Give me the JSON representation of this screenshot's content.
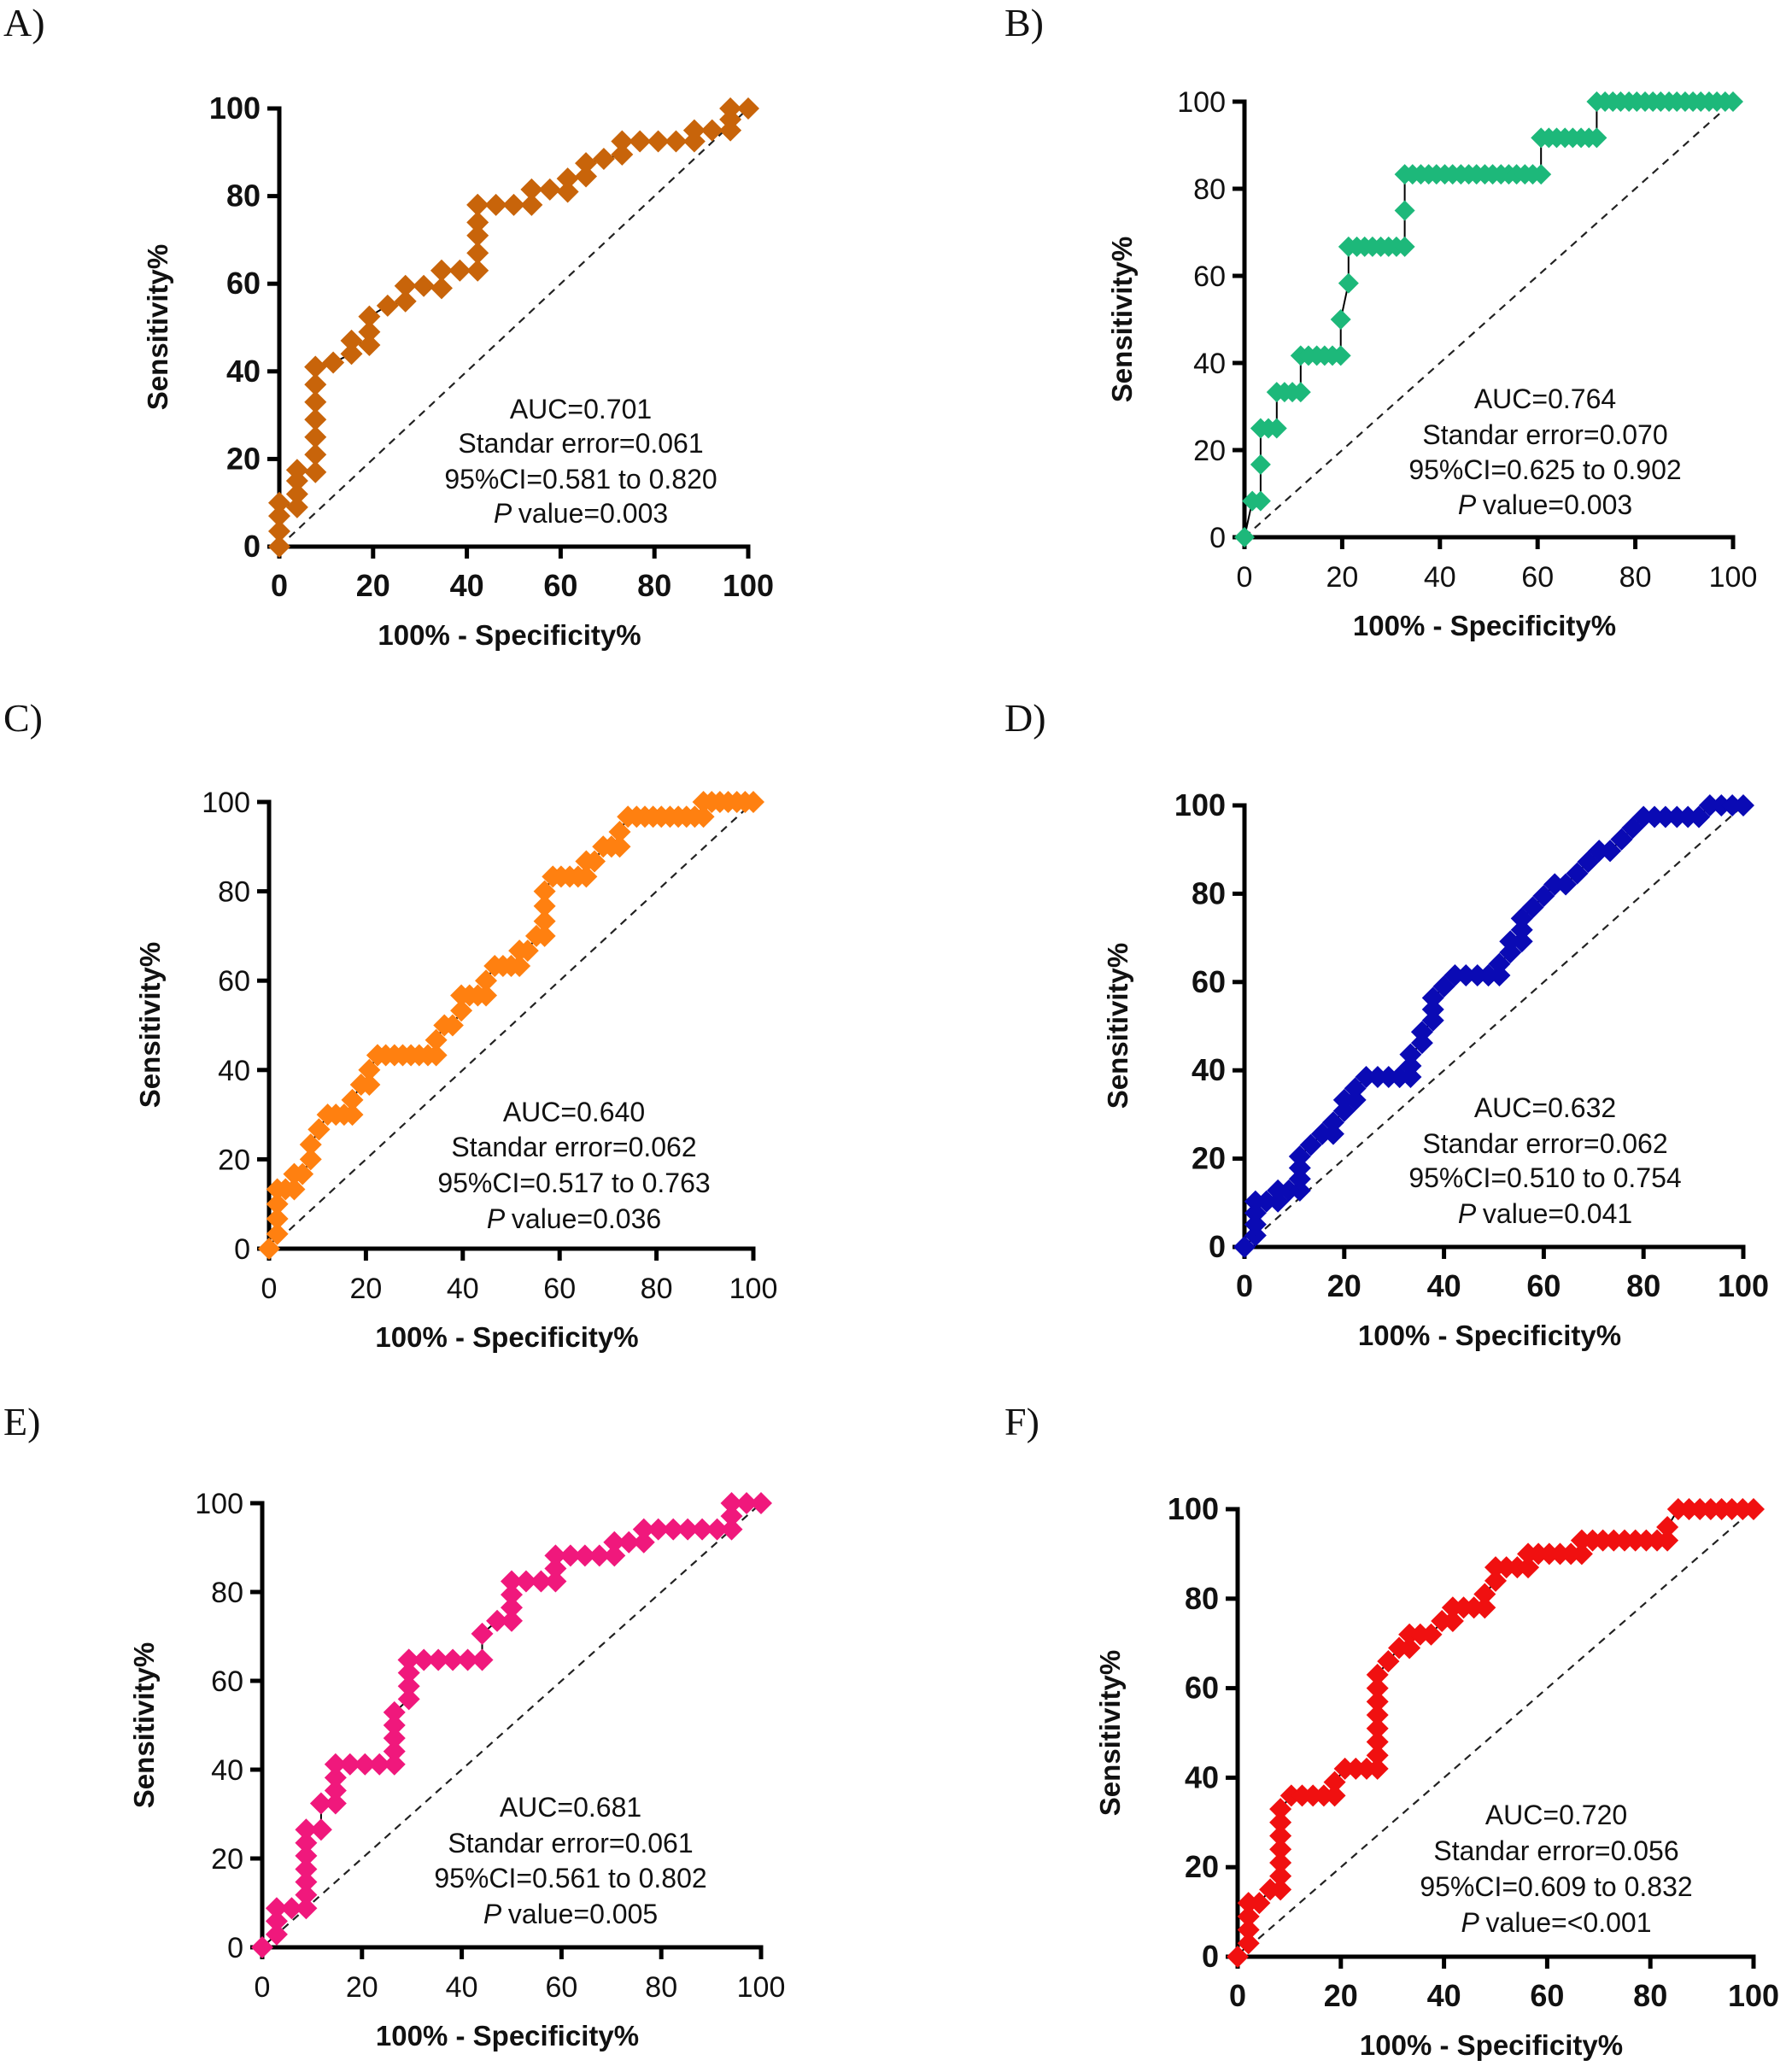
{
  "figure": {
    "panels": [
      "A)",
      "B)",
      "C)",
      "D)",
      "E)",
      "F)"
    ]
  },
  "chart_data": [
    {
      "panel": "A)",
      "type": "line",
      "marker": "diamond",
      "color": "#C8640A",
      "bold_ticks": true,
      "xlabel": "100% - Specificity%",
      "ylabel": "Sensitivity%",
      "xlim": [
        0,
        100
      ],
      "ylim": [
        0,
        100
      ],
      "xticks": [
        "0",
        "20",
        "40",
        "60",
        "80",
        "100"
      ],
      "yticks": [
        "0",
        "20",
        "40",
        "60",
        "80",
        "100"
      ],
      "reference_line": "diagonal dashed",
      "annotations": [
        "AUC=0.701",
        "Standar error=0.061",
        "95%CI=0.581 to 0.820",
        "value=0.003"
      ],
      "annotation_italic_prefix": "P",
      "x": [
        0,
        0,
        0,
        0,
        3.8,
        3.8,
        3.8,
        3.8,
        7.7,
        7.7,
        7.7,
        7.7,
        7.7,
        7.7,
        7.7,
        7.7,
        7.7,
        11.5,
        15.4,
        15.4,
        19.2,
        19.2,
        19.2,
        23.1,
        26.9,
        26.9,
        30.8,
        34.6,
        34.6,
        38.5,
        42.3,
        42.3,
        42.3,
        42.3,
        42.3,
        42.3,
        46.2,
        50,
        53.8,
        53.8,
        57.7,
        61.5,
        61.5,
        65.4,
        65.4,
        69.2,
        73.1,
        73.1,
        76.9,
        80.8,
        84.6,
        88.5,
        88.5,
        92.3,
        96.2,
        96.2,
        96.2,
        100
      ],
      "y": [
        0,
        3.5,
        7,
        10,
        9,
        12,
        15,
        17.5,
        17,
        21,
        25,
        29,
        33,
        37,
        41,
        41,
        41,
        42,
        44,
        47,
        46,
        49,
        52.5,
        55,
        56,
        59.5,
        59.5,
        59,
        63,
        63,
        63,
        67,
        71,
        74,
        78,
        78,
        78,
        78,
        78,
        81.5,
        81.5,
        81,
        84,
        84.5,
        87.5,
        88.5,
        89.5,
        92.5,
        92.5,
        92.5,
        92.5,
        92.5,
        95,
        95,
        95,
        97.5,
        100,
        100
      ]
    },
    {
      "panel": "B)",
      "type": "line",
      "marker": "diamond",
      "color": "#1DB87A",
      "bold_ticks": false,
      "xlabel": "100% - Specificity%",
      "ylabel": "Sensitivity%",
      "xlim": [
        0,
        100
      ],
      "ylim": [
        0,
        100
      ],
      "xticks": [
        "0",
        "20",
        "40",
        "60",
        "80",
        "100"
      ],
      "yticks": [
        "0",
        "20",
        "40",
        "60",
        "80",
        "100"
      ],
      "reference_line": "diagonal dashed",
      "annotations": [
        "AUC=0.764",
        "Standar error=0.070",
        "95%CI=0.625 to 0.902",
        "value=0.003"
      ],
      "annotation_italic_prefix": "P",
      "x": [
        0,
        1.6,
        3.3,
        3.3,
        3.3,
        4.9,
        6.6,
        6.6,
        8.2,
        9.8,
        11.5,
        11.5,
        13.1,
        14.8,
        16.4,
        18,
        19.7,
        19.7,
        21.3,
        21.3,
        23,
        24.6,
        26.2,
        27.9,
        29.5,
        31.1,
        32.8,
        32.8,
        32.8,
        34.4,
        36.1,
        37.7,
        39.3,
        41,
        42.6,
        44.3,
        45.9,
        47.5,
        49.2,
        50.8,
        52.5,
        54.1,
        55.7,
        57.4,
        59,
        60.7,
        60.7,
        62.3,
        63.9,
        65.6,
        67.2,
        68.9,
        70.5,
        72.1,
        72.1,
        73.8,
        75.4,
        77,
        78.7,
        80.3,
        82,
        83.6,
        85.2,
        86.9,
        88.5,
        90.2,
        91.8,
        93.4,
        95.1,
        96.7,
        98.4,
        100
      ],
      "y": [
        0,
        8.3,
        8.3,
        16.7,
        25,
        25,
        25,
        33.3,
        33.3,
        33.3,
        33.3,
        41.7,
        41.7,
        41.7,
        41.7,
        41.7,
        41.7,
        50,
        58.3,
        66.7,
        66.7,
        66.7,
        66.7,
        66.7,
        66.7,
        66.7,
        66.7,
        75,
        83.3,
        83.3,
        83.3,
        83.3,
        83.3,
        83.3,
        83.3,
        83.3,
        83.3,
        83.3,
        83.3,
        83.3,
        83.3,
        83.3,
        83.3,
        83.3,
        83.3,
        83.3,
        91.7,
        91.7,
        91.7,
        91.7,
        91.7,
        91.7,
        91.7,
        91.7,
        100,
        100,
        100,
        100,
        100,
        100,
        100,
        100,
        100,
        100,
        100,
        100,
        100,
        100,
        100,
        100,
        100,
        100
      ]
    },
    {
      "panel": "C)",
      "type": "line",
      "marker": "diamond",
      "color": "#FF8010",
      "bold_ticks": false,
      "xlabel": "100% - Specificity%",
      "ylabel": "Sensitivity%",
      "xlim": [
        0,
        100
      ],
      "ylim": [
        0,
        100
      ],
      "xticks": [
        "0",
        "20",
        "40",
        "60",
        "80",
        "100"
      ],
      "yticks": [
        "0",
        "20",
        "40",
        "60",
        "80",
        "100"
      ],
      "reference_line": "diagonal dashed",
      "annotations": [
        "AUC=0.640",
        "Standar error=0.062",
        "95%CI=0.517 to 0.763",
        "value=0.036"
      ],
      "annotation_italic_prefix": "P",
      "x": [
        0,
        1.7,
        1.7,
        1.7,
        1.7,
        3.4,
        5.2,
        5.2,
        6.9,
        8.6,
        8.6,
        10.3,
        10.3,
        12.1,
        13.8,
        15.5,
        17.2,
        17.2,
        19,
        20.7,
        20.7,
        22.4,
        22.4,
        24.1,
        25.9,
        27.6,
        29.3,
        31,
        32.8,
        34.5,
        34.5,
        36.2,
        37.9,
        39.7,
        39.7,
        41.4,
        43.1,
        44.8,
        44.8,
        46.6,
        48.3,
        50,
        51.7,
        51.7,
        53.4,
        55.2,
        56.9,
        56.9,
        56.9,
        56.9,
        58.6,
        60.3,
        62.1,
        63.8,
        65.5,
        65.5,
        67.2,
        69,
        70.7,
        72.4,
        72.4,
        74.1,
        75.9,
        77.6,
        79.3,
        81,
        82.8,
        84.5,
        86.2,
        87.9,
        89.7,
        89.7,
        91.4,
        93.1,
        94.8,
        96.6,
        98.3,
        100
      ],
      "y": [
        0,
        3.3,
        6.7,
        10,
        13.3,
        13.3,
        13.3,
        16.7,
        16.7,
        20,
        23.3,
        26.7,
        26.7,
        30,
        30,
        30,
        30,
        33.3,
        36.7,
        36.7,
        40,
        43.3,
        43.3,
        43.3,
        43.3,
        43.3,
        43.3,
        43.3,
        43.3,
        43.3,
        46.7,
        50,
        50,
        53.3,
        56.7,
        56.7,
        56.7,
        56.7,
        60,
        63.3,
        63.3,
        63.3,
        63.3,
        66.7,
        66.7,
        70,
        70,
        73.3,
        76.7,
        80,
        83.3,
        83.3,
        83.3,
        83.3,
        83.3,
        86.7,
        86.7,
        90,
        90,
        90,
        93.3,
        96.7,
        96.7,
        96.7,
        96.7,
        96.7,
        96.7,
        96.7,
        96.7,
        96.7,
        96.7,
        100,
        100,
        100,
        100,
        100,
        100,
        100
      ]
    },
    {
      "panel": "D)",
      "type": "line",
      "marker": "diamond",
      "color": "#0A0AB4",
      "bold_ticks": true,
      "xlabel": "100% - Specificity%",
      "ylabel": "Sensitivity%",
      "xlim": [
        0,
        100
      ],
      "ylim": [
        0,
        100
      ],
      "xticks": [
        "0",
        "20",
        "40",
        "60",
        "80",
        "100"
      ],
      "yticks": [
        "0",
        "20",
        "40",
        "60",
        "80",
        "100"
      ],
      "reference_line": "diagonal dashed",
      "annotations": [
        "AUC=0.632",
        "Standar error=0.062",
        "95%CI=0.510 to 0.754",
        "value=0.041"
      ],
      "annotation_italic_prefix": "P",
      "x": [
        0,
        2.2,
        2.2,
        2.2,
        2.2,
        4.4,
        6.7,
        6.7,
        8.9,
        11.1,
        11.1,
        11.1,
        11.1,
        13.3,
        15.6,
        15.6,
        17.8,
        17.8,
        20,
        20,
        22.2,
        22.2,
        24.4,
        26.7,
        28.9,
        31.1,
        31.1,
        33.3,
        33.3,
        33.3,
        35.6,
        35.6,
        37.8,
        37.8,
        37.8,
        40,
        42.2,
        44.4,
        46.7,
        48.9,
        48.9,
        51.1,
        51.1,
        53.3,
        53.3,
        55.6,
        55.6,
        55.6,
        57.8,
        60,
        62.2,
        62.2,
        62.2,
        64.4,
        66.7,
        68.9,
        71.1,
        71.1,
        73.3,
        73.3,
        75.6,
        75.6,
        77.8,
        80,
        82.2,
        84.4,
        86.7,
        88.9,
        91.1,
        91.1,
        93.3,
        95.6,
        97.8,
        100
      ],
      "y": [
        0,
        2.6,
        5.1,
        7.7,
        10.3,
        10.3,
        10.3,
        12.8,
        12.8,
        12.8,
        15.4,
        17.9,
        20.5,
        23.1,
        25.6,
        25.6,
        25.6,
        28.2,
        30.8,
        33.3,
        33.3,
        35.9,
        38.5,
        38.5,
        38.5,
        38.5,
        38.5,
        38.5,
        41,
        43.6,
        46.2,
        48.7,
        51.3,
        53.8,
        56.4,
        59,
        61.5,
        61.5,
        61.5,
        61.5,
        61.5,
        61.5,
        64.1,
        66.7,
        69.2,
        69.2,
        71.8,
        74.4,
        76.9,
        79.5,
        82.1,
        82.1,
        82.1,
        82.1,
        84.6,
        87.2,
        89.7,
        89.7,
        89.7,
        89.7,
        92.3,
        92.3,
        94.9,
        97.4,
        97.4,
        97.4,
        97.4,
        97.4,
        97.4,
        97.4,
        100,
        100,
        100,
        100
      ]
    },
    {
      "panel": "E)",
      "type": "line",
      "marker": "diamond",
      "color": "#F0187C",
      "bold_ticks": false,
      "xlabel": "100% - Specificity%",
      "ylabel": "Sensitivity%",
      "xlim": [
        0,
        100
      ],
      "ylim": [
        0,
        100
      ],
      "xticks": [
        "0",
        "20",
        "40",
        "60",
        "80",
        "100"
      ],
      "yticks": [
        "0",
        "20",
        "40",
        "60",
        "80",
        "100"
      ],
      "reference_line": "diagonal dashed",
      "annotations": [
        "AUC=0.681",
        "Standar error=0.061",
        "95%CI=0.561 to 0.802",
        "value=0.005"
      ],
      "annotation_italic_prefix": "P",
      "x": [
        0,
        2.9,
        2.9,
        2.9,
        5.9,
        8.8,
        8.8,
        8.8,
        8.8,
        8.8,
        8.8,
        8.8,
        11.8,
        11.8,
        14.7,
        14.7,
        14.7,
        14.7,
        17.6,
        20.6,
        23.5,
        26.5,
        26.5,
        26.5,
        26.5,
        26.5,
        29.4,
        29.4,
        29.4,
        29.4,
        29.4,
        29.4,
        32.4,
        35.3,
        38.2,
        41.2,
        44.1,
        44.1,
        47.1,
        50,
        50,
        50,
        50,
        52.9,
        55.9,
        58.8,
        58.8,
        58.8,
        61.8,
        64.7,
        67.6,
        70.6,
        70.6,
        73.5,
        76.5,
        76.5,
        79.4,
        82.4,
        85.3,
        88.2,
        91.2,
        94.1,
        94.1,
        94.1,
        97.1,
        100
      ],
      "y": [
        0,
        2.9,
        5.9,
        8.8,
        8.8,
        8.8,
        11.8,
        14.7,
        17.6,
        20.6,
        23.5,
        26.5,
        26.5,
        32.4,
        32.4,
        35.3,
        38.2,
        41.2,
        41.2,
        41.2,
        41.2,
        41.2,
        44.1,
        47.1,
        50,
        52.9,
        55.9,
        58.8,
        61.8,
        64.7,
        64.7,
        64.7,
        64.7,
        64.7,
        64.7,
        64.7,
        64.7,
        70.6,
        73.5,
        73.5,
        76.5,
        79.4,
        82.4,
        82.4,
        82.4,
        82.4,
        85.3,
        88.2,
        88.2,
        88.2,
        88.2,
        88.2,
        91.2,
        91.2,
        91.2,
        94.1,
        94.1,
        94.1,
        94.1,
        94.1,
        94.1,
        94.1,
        97.1,
        100,
        100,
        100
      ]
    },
    {
      "panel": "F)",
      "type": "line",
      "marker": "diamond",
      "color": "#F01010",
      "bold_ticks": true,
      "xlabel": "100% - Specificity%",
      "ylabel": "Sensitivity%",
      "xlim": [
        0,
        100
      ],
      "ylim": [
        0,
        100
      ],
      "xticks": [
        "0",
        "20",
        "40",
        "60",
        "80",
        "100"
      ],
      "yticks": [
        "0",
        "20",
        "40",
        "60",
        "80",
        "100"
      ],
      "reference_line": "diagonal dashed",
      "annotations": [
        "AUC=0.720",
        "Standar error=0.056",
        "95%CI=0.609 to 0.832",
        "value=<0.001"
      ],
      "annotation_italic_prefix": "P",
      "x": [
        0,
        2.1,
        2.1,
        2.1,
        2.1,
        4.2,
        6.3,
        8.3,
        8.3,
        8.3,
        8.3,
        8.3,
        8.3,
        8.3,
        10.4,
        12.5,
        14.6,
        16.7,
        18.8,
        18.8,
        20.8,
        22.9,
        25,
        27.1,
        27.1,
        27.1,
        27.1,
        27.1,
        27.1,
        27.1,
        27.1,
        29.2,
        29.2,
        31.3,
        33.3,
        33.3,
        35.4,
        37.5,
        39.6,
        41.7,
        41.7,
        43.8,
        45.8,
        47.9,
        47.9,
        50,
        50,
        52.1,
        54.2,
        56.3,
        56.3,
        58.3,
        60.4,
        62.5,
        64.6,
        66.7,
        66.7,
        68.8,
        70.8,
        72.9,
        75,
        77.1,
        79.2,
        81.3,
        83.3,
        83.3,
        85.4,
        87.5,
        89.6,
        91.7,
        93.8,
        95.8,
        97.9,
        100
      ],
      "y": [
        0,
        3,
        6,
        9,
        12,
        12,
        15,
        15,
        18,
        21,
        24,
        27,
        30,
        33,
        36,
        36,
        36,
        36,
        36,
        39,
        42,
        42,
        42,
        42,
        45,
        48,
        51,
        54,
        57,
        60,
        63,
        66,
        66,
        69,
        69,
        72,
        72,
        72,
        75,
        75,
        78,
        78,
        78,
        78,
        81,
        84,
        87,
        87,
        87,
        87,
        90,
        90,
        90,
        90,
        90,
        90,
        93,
        93,
        93,
        93,
        93,
        93,
        93,
        93,
        93,
        96,
        100,
        100,
        100,
        100,
        100,
        100,
        100,
        100
      ]
    }
  ]
}
